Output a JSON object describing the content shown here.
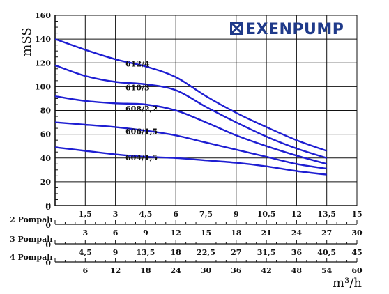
{
  "chart_data": {
    "type": "line",
    "brand": "EXENPUMP",
    "ylabel": "mSS",
    "xlabel": "m³/h",
    "xlim": [
      0,
      15
    ],
    "ylim": [
      0,
      160
    ],
    "grid": true,
    "y_ticks": [
      "0",
      "20",
      "40",
      "60",
      "80",
      "100",
      "120",
      "140",
      "160"
    ],
    "x_ticks": [
      "1,5",
      "3",
      "4,5",
      "6",
      "7,5",
      "9",
      "10,5",
      "12",
      "13,5",
      "15"
    ],
    "extra_axes": [
      {
        "label": "2 Pompalı",
        "zero": "0",
        "ticks": [
          "3",
          "6",
          "9",
          "12",
          "15",
          "18",
          "21",
          "24",
          "27",
          "30"
        ]
      },
      {
        "label": "3 Pompalı",
        "zero": "0",
        "ticks": [
          "4,5",
          "9",
          "13,5",
          "18",
          "22,5",
          "27",
          "31,5",
          "36",
          "40,5",
          "45"
        ]
      },
      {
        "label": "4 Pompalı",
        "zero": "0",
        "ticks": [
          "6",
          "12",
          "18",
          "24",
          "30",
          "36",
          "42",
          "48",
          "54",
          "60"
        ]
      }
    ],
    "series": [
      {
        "name": "612/4",
        "label_at": [
          3.5,
          117
        ],
        "x": [
          0,
          1.5,
          3,
          4.5,
          6,
          7.5,
          9,
          10.5,
          12,
          13.5
        ],
        "y": [
          140,
          131,
          123,
          117,
          108,
          92,
          78,
          66,
          55,
          46
        ]
      },
      {
        "name": "610/3",
        "label_at": [
          3.5,
          97
        ],
        "x": [
          0,
          1.5,
          3,
          4.5,
          6,
          7.5,
          9,
          10.5,
          12,
          13.5
        ],
        "y": [
          118,
          109,
          104,
          102,
          97,
          83,
          70,
          58,
          48,
          40
        ]
      },
      {
        "name": "608/2,2",
        "label_at": [
          3.5,
          79
        ],
        "x": [
          0,
          1.5,
          3,
          4.5,
          6,
          7.5,
          9,
          10.5,
          12,
          13.5
        ],
        "y": [
          92,
          88,
          86,
          85,
          80,
          70,
          59,
          50,
          42,
          35
        ]
      },
      {
        "name": "606/1,5",
        "label_at": [
          3.5,
          60
        ],
        "x": [
          0,
          1.5,
          3,
          4.5,
          6,
          7.5,
          9,
          10.5,
          12,
          13.5
        ],
        "y": [
          70,
          68,
          66,
          63,
          59,
          53,
          47,
          41,
          35,
          31
        ]
      },
      {
        "name": "604/1,5",
        "label_at": [
          3.5,
          38
        ],
        "x": [
          0,
          1.5,
          3,
          4.5,
          6,
          7.5,
          9,
          10.5,
          12,
          13.5
        ],
        "y": [
          49,
          46,
          43,
          41,
          40,
          38,
          36,
          33,
          29,
          26
        ]
      }
    ]
  },
  "colors": {
    "curve": "#1e1ed2",
    "grid": "#111111"
  }
}
